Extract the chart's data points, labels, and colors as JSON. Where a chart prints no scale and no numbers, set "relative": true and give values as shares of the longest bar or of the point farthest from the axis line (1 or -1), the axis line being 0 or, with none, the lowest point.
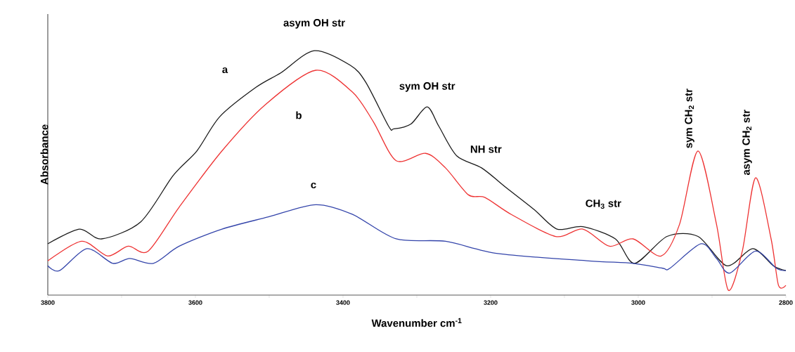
{
  "chart_data": {
    "type": "line",
    "relative": true,
    "xlabel": "Wavenumber cm$^{-1}$",
    "ylabel": "Absorbance",
    "xlim": [
      3800,
      2800
    ],
    "xticks": [
      3800,
      {
        "value": 3700,
        "label": null
      },
      3600,
      {
        "value": 3500,
        "label": null
      },
      3400,
      {
        "value": 3300,
        "label": null
      },
      3200,
      {
        "value": 3100,
        "label": null
      },
      3000,
      {
        "value": 2900,
        "label": null
      },
      2800
    ],
    "grid": false,
    "marker": "none",
    "line_style": "solid",
    "annotations": [
      {
        "text": "asym OH str",
        "x": 3439,
        "y": 1.0
      },
      {
        "text": "sym OH str",
        "x": 3286,
        "y": 0.77
      },
      {
        "text": "NH str",
        "x": 3212,
        "y": 0.52
      },
      {
        "text": "CH$_{3}$ str",
        "x": 3075,
        "y": 0.28
      },
      {
        "text": "sym CH$_{2}$ str",
        "x": 2919,
        "y": 0.59
      },
      {
        "text": "asym CH$_{2}$ str",
        "x": 2841,
        "y": 0.48
      }
    ],
    "series": [
      {
        "name": "a",
        "color": "#1a1a1a",
        "x": [
          3800,
          3757,
          3727,
          3674,
          3630,
          3598,
          3567,
          3518,
          3484,
          3439,
          3390,
          3369,
          3338,
          3331,
          3308,
          3286,
          3270,
          3246,
          3212,
          3179,
          3141,
          3110,
          3075,
          3031,
          3005,
          2961,
          2919,
          2880,
          2845,
          2817,
          2800
        ],
        "values": [
          0.21,
          0.27,
          0.23,
          0.3,
          0.49,
          0.59,
          0.73,
          0.85,
          0.91,
          1.0,
          0.94,
          0.87,
          0.69,
          0.68,
          0.7,
          0.77,
          0.69,
          0.57,
          0.52,
          0.44,
          0.35,
          0.27,
          0.28,
          0.23,
          0.13,
          0.24,
          0.24,
          0.12,
          0.19,
          0.12,
          0.1
        ]
      },
      {
        "name": "b",
        "color": "#ee3333",
        "x": [
          3800,
          3754,
          3719,
          3691,
          3664,
          3622,
          3564,
          3505,
          3437,
          3387,
          3359,
          3328,
          3288,
          3261,
          3230,
          3208,
          3172,
          3112,
          3075,
          3039,
          3007,
          2969,
          2944,
          2919,
          2894,
          2878,
          2859,
          2841,
          2820,
          2810,
          2800
        ],
        "values": [
          0.14,
          0.22,
          0.16,
          0.2,
          0.18,
          0.36,
          0.59,
          0.78,
          0.92,
          0.83,
          0.71,
          0.55,
          0.58,
          0.52,
          0.41,
          0.4,
          0.33,
          0.24,
          0.27,
          0.2,
          0.23,
          0.16,
          0.29,
          0.59,
          0.29,
          0.02,
          0.18,
          0.48,
          0.23,
          0.04,
          0.04
        ]
      },
      {
        "name": "c",
        "color": "#3344aa",
        "x": [
          3800,
          3784,
          3747,
          3712,
          3689,
          3657,
          3622,
          3564,
          3501,
          3437,
          3387,
          3328,
          3261,
          3190,
          3067,
          3007,
          2967,
          2957,
          2915,
          2894,
          2876,
          2841,
          2813,
          2800
        ],
        "values": [
          0.12,
          0.1,
          0.19,
          0.13,
          0.15,
          0.13,
          0.2,
          0.27,
          0.32,
          0.37,
          0.33,
          0.23,
          0.22,
          0.17,
          0.14,
          0.13,
          0.11,
          0.11,
          0.21,
          0.15,
          0.09,
          0.18,
          0.11,
          0.1
        ]
      }
    ]
  }
}
